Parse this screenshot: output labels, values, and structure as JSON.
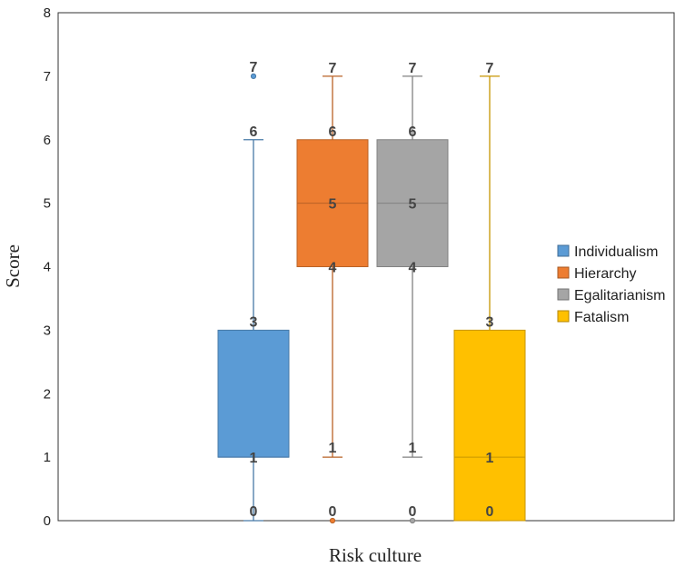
{
  "chart_data": {
    "type": "box",
    "title": "",
    "xlabel": "Risk culture",
    "ylabel": "Score",
    "ylim": [
      0,
      8
    ],
    "yticks": [
      0,
      1,
      2,
      3,
      4,
      5,
      6,
      7,
      8
    ],
    "grid": false,
    "legend_position": "right",
    "series": [
      {
        "name": "Individualism",
        "color": "#5B9BD5",
        "whisker_low": 0,
        "q1": 1,
        "median": 1,
        "q3": 3,
        "whisker_high": 6,
        "outliers": [
          7
        ],
        "labels": {
          "min": "0",
          "q1": "1",
          "q3": "3",
          "max": "6",
          "outlier": "7"
        }
      },
      {
        "name": "Hierarchy",
        "color": "#ED7D31",
        "whisker_low": 1,
        "q1": 4,
        "median": 5,
        "q3": 6,
        "whisker_high": 7,
        "outliers": [
          0
        ],
        "labels": {
          "min": "1",
          "q1": "4",
          "median": "5",
          "q3": "6",
          "max": "7",
          "outlier": "0"
        }
      },
      {
        "name": "Egalitarianism",
        "color": "#A5A5A5",
        "whisker_low": 1,
        "q1": 4,
        "median": 5,
        "q3": 6,
        "whisker_high": 7,
        "outliers": [
          0
        ],
        "labels": {
          "min": "1",
          "q1": "4",
          "median": "5",
          "q3": "6",
          "max": "7",
          "outlier": "0"
        }
      },
      {
        "name": "Fatalism",
        "color": "#FFC000",
        "whisker_low": 0,
        "q1": 0,
        "median": 1,
        "q3": 3,
        "whisker_high": 7,
        "outliers": [],
        "labels": {
          "q1": "0",
          "median": "1",
          "q3": "3",
          "max": "7"
        }
      }
    ]
  }
}
